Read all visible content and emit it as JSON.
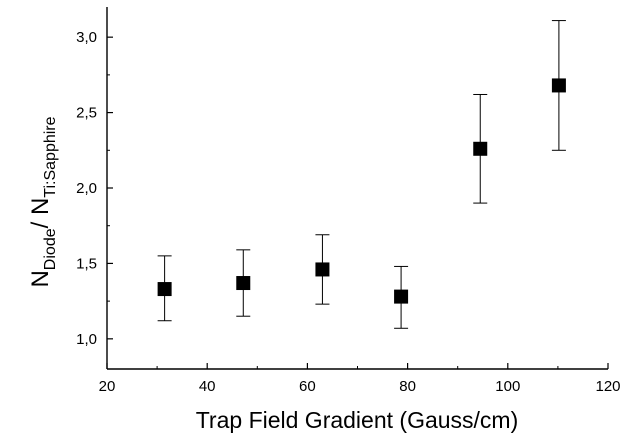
{
  "chart_data": {
    "type": "scatter",
    "title": "",
    "xlabel": "Trap Field Gradient (Gauss/cm)",
    "ylabel": {
      "main": "N",
      "sub1": "Diode",
      "slash": "/ N",
      "sub2": "Ti:Sapphire"
    },
    "xlim": [
      20,
      120
    ],
    "ylim": [
      0.8,
      3.2
    ],
    "x_ticks": [
      20,
      40,
      60,
      80,
      100,
      120
    ],
    "x_tick_labels": [
      "20",
      "40",
      "60",
      "80",
      "100",
      "120"
    ],
    "y_ticks": [
      1.0,
      1.5,
      2.0,
      2.5,
      3.0
    ],
    "y_tick_labels": [
      "1,0",
      "1,5",
      "2,0",
      "2,5",
      "3,0"
    ],
    "grid": false,
    "marker": "square",
    "marker_color": "#000000",
    "points": [
      {
        "x": 31.5,
        "y": 1.33,
        "err_low": 1.12,
        "err_high": 1.55
      },
      {
        "x": 47.2,
        "y": 1.37,
        "err_low": 1.15,
        "err_high": 1.59
      },
      {
        "x": 63.0,
        "y": 1.46,
        "err_low": 1.23,
        "err_high": 1.69
      },
      {
        "x": 78.7,
        "y": 1.28,
        "err_low": 1.07,
        "err_high": 1.48
      },
      {
        "x": 94.5,
        "y": 2.26,
        "err_low": 1.9,
        "err_high": 2.62
      },
      {
        "x": 110.2,
        "y": 2.68,
        "err_low": 2.25,
        "err_high": 3.11
      }
    ]
  }
}
